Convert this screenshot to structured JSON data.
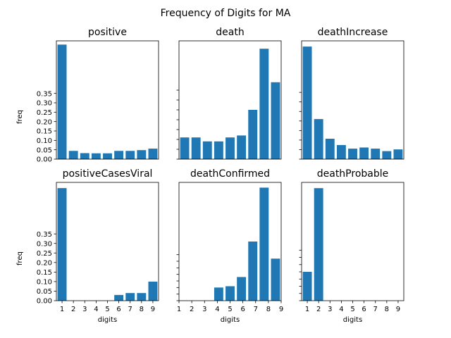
{
  "figure": {
    "title": "Frequency of Digits for MA",
    "colors": {
      "bar": "#1f77b4"
    }
  },
  "chart_data": [
    {
      "type": "bar",
      "title": "positive",
      "xlabel": "",
      "ylabel": "freq",
      "categories": [
        "1",
        "2",
        "3",
        "4",
        "5",
        "6",
        "7",
        "8",
        "9"
      ],
      "values": [
        0.61,
        0.044,
        0.032,
        0.031,
        0.031,
        0.044,
        0.044,
        0.048,
        0.056
      ],
      "yticks": [
        "0.00",
        "0.05",
        "0.10",
        "0.15",
        "0.20",
        "0.25",
        "0.30",
        "0.35"
      ],
      "xticks": [],
      "ylim": [
        0,
        0.63
      ]
    },
    {
      "type": "bar",
      "title": "death",
      "xlabel": "",
      "ylabel": "",
      "categories": [
        "1",
        "2",
        "3",
        "4",
        "5",
        "6",
        "7",
        "8",
        "9"
      ],
      "values": [
        0.11,
        0.11,
        0.09,
        0.09,
        0.11,
        0.12,
        0.25,
        0.56,
        0.39
      ],
      "yticks": [],
      "xticks": [],
      "ylim": [
        0,
        0.6
      ]
    },
    {
      "type": "bar",
      "title": "deathIncrease",
      "xlabel": "",
      "ylabel": "",
      "categories": [
        "1",
        "2",
        "3",
        "4",
        "5",
        "6",
        "7",
        "8",
        "9"
      ],
      "values": [
        0.59,
        0.21,
        0.107,
        0.074,
        0.055,
        0.061,
        0.055,
        0.042,
        0.051
      ],
      "yticks": [],
      "xticks": [],
      "ylim": [
        0,
        0.62
      ]
    },
    {
      "type": "bar",
      "title": "positiveCasesViral",
      "xlabel": "digits",
      "ylabel": "freq",
      "categories": [
        "1",
        "2",
        "3",
        "4",
        "5",
        "6",
        "7",
        "8",
        "9"
      ],
      "values": [
        0.59,
        0,
        0,
        0,
        0,
        0.03,
        0.04,
        0.04,
        0.1
      ],
      "yticks": [
        "0.00",
        "0.05",
        "0.10",
        "0.15",
        "0.20",
        "0.25",
        "0.30",
        "0.35"
      ],
      "xticks": [
        "1",
        "2",
        "3",
        "4",
        "5",
        "6",
        "7",
        "8",
        "9"
      ],
      "ylim": [
        0,
        0.62
      ]
    },
    {
      "type": "bar",
      "title": "deathConfirmed",
      "xlabel": "digits",
      "ylabel": "",
      "categories": [
        "1",
        "2",
        "3",
        "4",
        "5",
        "6",
        "7",
        "8",
        "9"
      ],
      "values": [
        0,
        0,
        0,
        0.1,
        0.11,
        0.18,
        0.45,
        0.86,
        0.32
      ],
      "yticks": [],
      "xticks": [
        "1",
        "2",
        "3",
        "4",
        "5",
        "6",
        "7",
        "8",
        "9"
      ],
      "ylim": [
        0,
        0.9
      ]
    },
    {
      "type": "bar",
      "title": "deathProbable",
      "xlabel": "digits",
      "ylabel": "",
      "categories": [
        "1",
        "2",
        "3",
        "4",
        "5",
        "6",
        "7",
        "8",
        "9"
      ],
      "values": [
        0.2,
        0.78,
        0,
        0,
        0,
        0,
        0,
        0,
        0
      ],
      "yticks": [],
      "xticks": [
        "1",
        "2",
        "3",
        "4",
        "5",
        "6",
        "7",
        "8",
        "9"
      ],
      "ylim": [
        0,
        0.82
      ]
    }
  ]
}
